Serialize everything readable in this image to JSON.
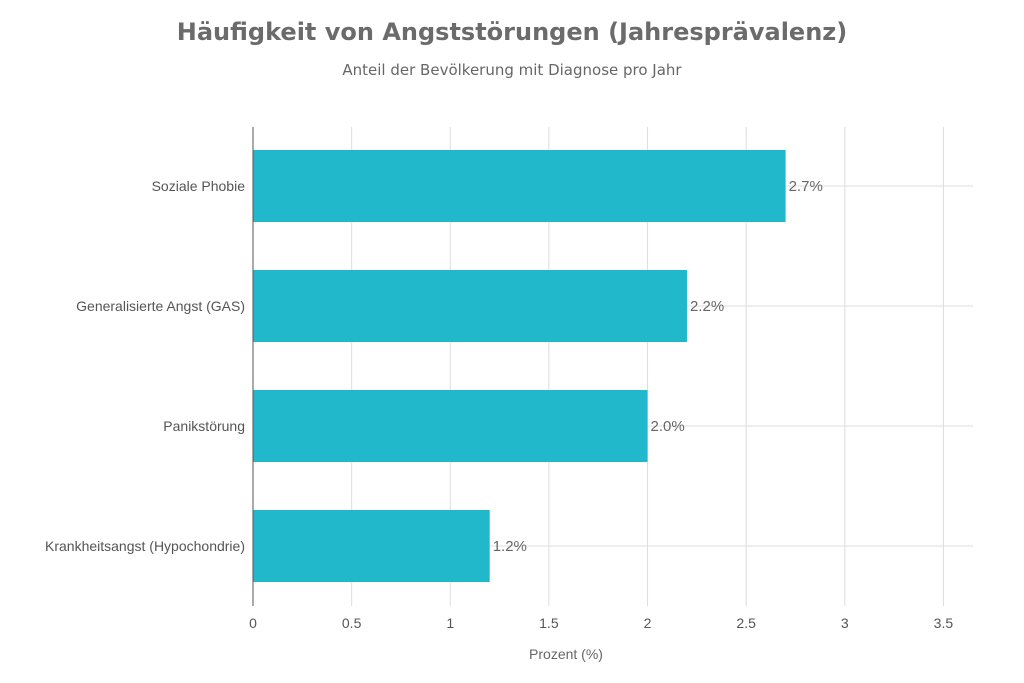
{
  "chart_data": {
    "type": "bar",
    "orientation": "horizontal",
    "title": "Häufigkeit von Angststörungen (Jahresprävalenz)",
    "subtitle": "Anteil der Bevölkerung mit Diagnose pro Jahr",
    "categories": [
      "Soziale Phobie",
      "Generalisierte Angst (GAS)",
      "Panikstörung",
      "Krankheitsangst (Hypochondrie)"
    ],
    "values": [
      2.7,
      2.2,
      2.0,
      1.2
    ],
    "data_labels": [
      "2.7%",
      "2.2%",
      "2.0%",
      "1.2%"
    ],
    "xlabel": "Prozent (%)",
    "ylabel": "",
    "xlim": [
      0,
      3.65
    ],
    "xticks": [
      0,
      0.5,
      1,
      1.5,
      2,
      2.5,
      3,
      3.5
    ],
    "xtick_labels": [
      "0",
      "0.5",
      "1",
      "1.5",
      "2",
      "2.5",
      "3",
      "3.5"
    ],
    "grid": true,
    "bar_color": "#22b8cc",
    "grid_color": "#dddddd",
    "axis_color": "#555555"
  }
}
